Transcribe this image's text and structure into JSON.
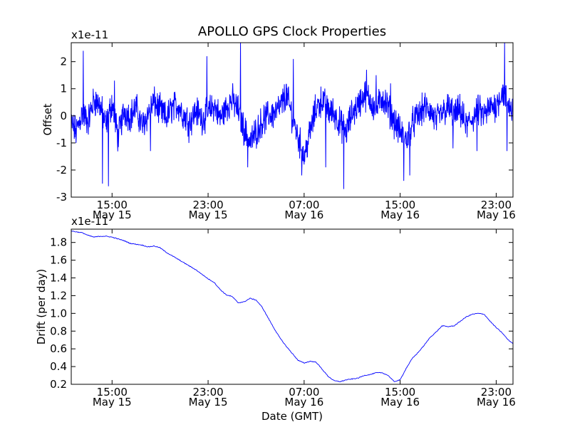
{
  "chart_data": [
    {
      "type": "line",
      "title": "APOLLO GPS Clock Properties",
      "ylabel": "Offset",
      "xlabel": "",
      "y_multiplier_label": "x1e-11",
      "ylim": [
        -3,
        2.7
      ],
      "yticks": [
        -3,
        -2,
        -1,
        0,
        1,
        2
      ],
      "ytick_labels": [
        "-3",
        "-2",
        "-1",
        "0",
        "1",
        "2"
      ],
      "xlim_hours": [
        11.6,
        48.4
      ],
      "xticks_hours": [
        15,
        23,
        31,
        39,
        47
      ],
      "xtick_labels": [
        {
          "time": "15:00",
          "date": "May 15"
        },
        {
          "time": "23:00",
          "date": "May 15"
        },
        {
          "time": "07:00",
          "date": "May 16"
        },
        {
          "time": "15:00",
          "date": "May 16"
        },
        {
          "time": "23:00",
          "date": "May 16"
        }
      ],
      "line_color": "#0000ff",
      "series": [
        {
          "name": "Offset",
          "points": [
            [
              11.6,
              -0.3
            ],
            [
              12.0,
              -0.6
            ],
            [
              12.5,
              0.1
            ],
            [
              13.0,
              -0.2
            ],
            [
              13.5,
              0.6
            ],
            [
              14.0,
              0.4
            ],
            [
              14.5,
              -0.4
            ],
            [
              15.0,
              0.5
            ],
            [
              15.5,
              -0.8
            ],
            [
              16.0,
              0.2
            ],
            [
              16.5,
              0.0
            ],
            [
              17.0,
              0.3
            ],
            [
              17.5,
              -0.4
            ],
            [
              18.0,
              0.1
            ],
            [
              18.5,
              0.5
            ],
            [
              19.0,
              0.2
            ],
            [
              19.5,
              -0.1
            ],
            [
              20.0,
              0.3
            ],
            [
              20.5,
              0.4
            ],
            [
              21.0,
              0.0
            ],
            [
              21.5,
              -0.2
            ],
            [
              22.0,
              0.2
            ],
            [
              22.5,
              -0.1
            ],
            [
              23.0,
              0.1
            ],
            [
              23.5,
              0.4
            ],
            [
              24.0,
              -0.1
            ],
            [
              24.5,
              0.3
            ],
            [
              25.0,
              0.6
            ],
            [
              25.5,
              0.2
            ],
            [
              26.0,
              -0.5
            ],
            [
              26.5,
              -1.0
            ],
            [
              27.0,
              -0.6
            ],
            [
              27.5,
              -0.2
            ],
            [
              28.0,
              0.0
            ],
            [
              28.5,
              0.1
            ],
            [
              29.0,
              0.3
            ],
            [
              29.5,
              0.8
            ],
            [
              30.0,
              0.0
            ],
            [
              30.5,
              -0.8
            ],
            [
              31.0,
              -1.5
            ],
            [
              31.5,
              -0.6
            ],
            [
              32.0,
              0.3
            ],
            [
              32.5,
              0.6
            ],
            [
              33.0,
              0.2
            ],
            [
              33.5,
              0.1
            ],
            [
              34.0,
              -0.3
            ],
            [
              34.5,
              -0.6
            ],
            [
              35.0,
              0.1
            ],
            [
              35.5,
              0.4
            ],
            [
              36.0,
              0.8
            ],
            [
              36.5,
              0.6
            ],
            [
              37.0,
              0.2
            ],
            [
              37.5,
              0.7
            ],
            [
              38.0,
              0.3
            ],
            [
              38.5,
              -0.2
            ],
            [
              39.0,
              -0.6
            ],
            [
              39.5,
              -0.9
            ],
            [
              40.0,
              -0.3
            ],
            [
              40.5,
              0.0
            ],
            [
              41.0,
              0.3
            ],
            [
              41.5,
              0.2
            ],
            [
              42.0,
              -0.2
            ],
            [
              42.5,
              0.1
            ],
            [
              43.0,
              0.3
            ],
            [
              43.5,
              0.0
            ],
            [
              44.0,
              0.2
            ],
            [
              44.5,
              -0.4
            ],
            [
              45.0,
              -0.1
            ],
            [
              45.5,
              0.2
            ],
            [
              46.0,
              0.0
            ],
            [
              46.5,
              0.3
            ],
            [
              47.0,
              0.4
            ],
            [
              47.5,
              0.9
            ],
            [
              48.0,
              0.4
            ],
            [
              48.4,
              0.2
            ]
          ],
          "spikes": [
            [
              12.6,
              2.4
            ],
            [
              14.2,
              -2.5
            ],
            [
              14.7,
              -2.6
            ],
            [
              15.2,
              1.3
            ],
            [
              18.2,
              -1.3
            ],
            [
              21.4,
              -1.0
            ],
            [
              22.9,
              2.2
            ],
            [
              25.7,
              2.7
            ],
            [
              26.3,
              -1.9
            ],
            [
              30.1,
              2.1
            ],
            [
              30.8,
              -2.2
            ],
            [
              32.8,
              -1.9
            ],
            [
              34.3,
              -2.7
            ],
            [
              36.2,
              1.7
            ],
            [
              37.0,
              1.5
            ],
            [
              38.2,
              1.2
            ],
            [
              39.3,
              -2.4
            ],
            [
              39.8,
              -2.2
            ],
            [
              43.4,
              -1.2
            ],
            [
              45.4,
              -1.3
            ],
            [
              47.7,
              2.7
            ],
            [
              47.9,
              -1.3
            ]
          ]
        }
      ]
    },
    {
      "type": "line",
      "title": "",
      "ylabel": "Drift (per day)",
      "xlabel": "Date (GMT)",
      "y_multiplier_label": "x1e-11",
      "ylim": [
        0.2,
        1.95
      ],
      "yticks": [
        0.2,
        0.4,
        0.6,
        0.8,
        1.0,
        1.2,
        1.4,
        1.6,
        1.8
      ],
      "ytick_labels": [
        "0.2",
        "0.4",
        "0.6",
        "0.8",
        "1.0",
        "1.2",
        "1.4",
        "1.6",
        "1.8"
      ],
      "xlim_hours": [
        11.6,
        48.4
      ],
      "xticks_hours": [
        15,
        23,
        31,
        39,
        47
      ],
      "xtick_labels": [
        {
          "time": "15:00",
          "date": "May 15"
        },
        {
          "time": "23:00",
          "date": "May 15"
        },
        {
          "time": "07:00",
          "date": "May 16"
        },
        {
          "time": "15:00",
          "date": "May 16"
        },
        {
          "time": "23:00",
          "date": "May 16"
        }
      ],
      "line_color": "#0000ff",
      "series": [
        {
          "name": "Drift",
          "points": [
            [
              11.6,
              1.93
            ],
            [
              12.0,
              1.92
            ],
            [
              12.5,
              1.91
            ],
            [
              13.0,
              1.88
            ],
            [
              13.5,
              1.86
            ],
            [
              14.0,
              1.87
            ],
            [
              14.5,
              1.87
            ],
            [
              15.0,
              1.86
            ],
            [
              15.5,
              1.84
            ],
            [
              16.0,
              1.82
            ],
            [
              16.5,
              1.79
            ],
            [
              17.0,
              1.78
            ],
            [
              17.5,
              1.77
            ],
            [
              18.0,
              1.75
            ],
            [
              18.5,
              1.76
            ],
            [
              19.0,
              1.74
            ],
            [
              19.5,
              1.69
            ],
            [
              20.0,
              1.65
            ],
            [
              20.5,
              1.61
            ],
            [
              21.0,
              1.57
            ],
            [
              21.5,
              1.53
            ],
            [
              22.0,
              1.49
            ],
            [
              22.5,
              1.44
            ],
            [
              23.0,
              1.39
            ],
            [
              23.5,
              1.35
            ],
            [
              24.0,
              1.27
            ],
            [
              24.5,
              1.21
            ],
            [
              25.0,
              1.19
            ],
            [
              25.5,
              1.12
            ],
            [
              26.0,
              1.13
            ],
            [
              26.5,
              1.17
            ],
            [
              27.0,
              1.15
            ],
            [
              27.5,
              1.07
            ],
            [
              28.0,
              0.95
            ],
            [
              28.5,
              0.83
            ],
            [
              29.0,
              0.72
            ],
            [
              29.5,
              0.63
            ],
            [
              30.0,
              0.55
            ],
            [
              30.5,
              0.47
            ],
            [
              31.0,
              0.44
            ],
            [
              31.5,
              0.46
            ],
            [
              32.0,
              0.45
            ],
            [
              32.5,
              0.37
            ],
            [
              33.0,
              0.29
            ],
            [
              33.5,
              0.24
            ],
            [
              34.0,
              0.23
            ],
            [
              34.5,
              0.25
            ],
            [
              35.0,
              0.26
            ],
            [
              35.5,
              0.27
            ],
            [
              36.0,
              0.3
            ],
            [
              36.5,
              0.31
            ],
            [
              37.0,
              0.33
            ],
            [
              37.5,
              0.33
            ],
            [
              38.0,
              0.3
            ],
            [
              38.5,
              0.23
            ],
            [
              39.0,
              0.25
            ],
            [
              39.5,
              0.38
            ],
            [
              40.0,
              0.49
            ],
            [
              40.5,
              0.56
            ],
            [
              41.0,
              0.64
            ],
            [
              41.5,
              0.73
            ],
            [
              42.0,
              0.79
            ],
            [
              42.5,
              0.86
            ],
            [
              43.0,
              0.85
            ],
            [
              43.5,
              0.86
            ],
            [
              44.0,
              0.91
            ],
            [
              44.5,
              0.96
            ],
            [
              45.0,
              0.99
            ],
            [
              45.5,
              1.0
            ],
            [
              46.0,
              0.99
            ],
            [
              46.5,
              0.91
            ],
            [
              47.0,
              0.84
            ],
            [
              47.5,
              0.78
            ],
            [
              48.0,
              0.7
            ],
            [
              48.4,
              0.66
            ]
          ],
          "tail_points": [
            [
              48.4,
              0.66
            ]
          ]
        }
      ]
    }
  ]
}
